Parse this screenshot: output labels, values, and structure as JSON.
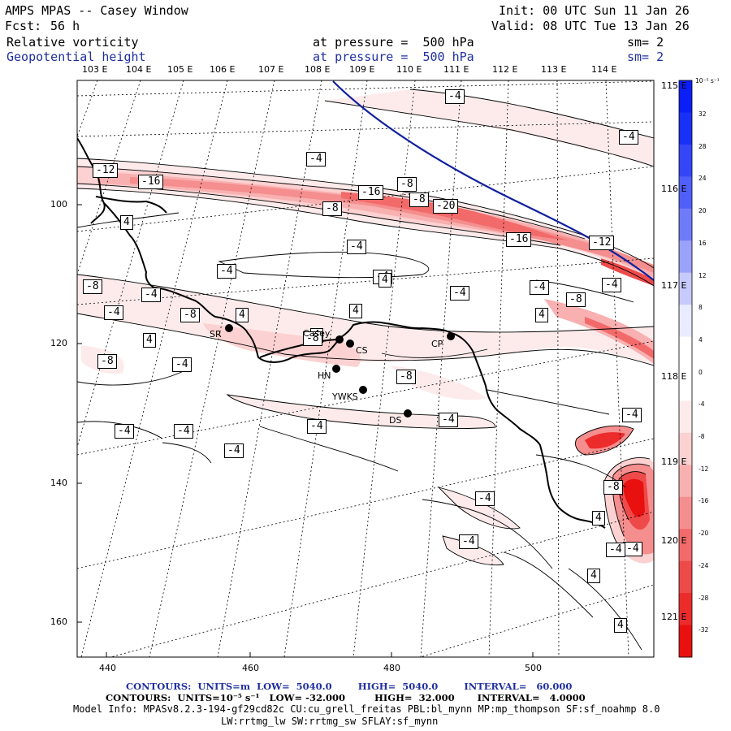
{
  "header": {
    "title": "AMPS MPAS -- Casey Window",
    "forecast_label": "Fcst:",
    "forecast_value": "56 h",
    "init": "Init: 00 UTC Sun 11 Jan 26",
    "valid": "Valid: 08 UTC Tue 13 Jan 26"
  },
  "fields": [
    {
      "name": "Relative vorticity",
      "level": "at pressure =  500 hPa",
      "smooth": "sm= 2"
    },
    {
      "name": "Geopotential height",
      "level": "at pressure =  500 hPa",
      "smooth": "sm= 2"
    }
  ],
  "longitude_labels": [
    "103 E",
    "104 E",
    "105 E",
    "106 E",
    "107 E",
    "108 E",
    "109 E",
    "110 E",
    "111 E",
    "112 E",
    "113 E",
    "114 E"
  ],
  "latitude_labels": [
    "115 E",
    "116 E",
    "117 E",
    "118 E",
    "119 E",
    "120 E",
    "121 E"
  ],
  "x_axis": [
    "440",
    "460",
    "480",
    "500"
  ],
  "y_axis": [
    "100",
    "120",
    "140",
    "160"
  ],
  "colorbar": {
    "unit": "10⁻⁵ s⁻¹",
    "labels": [
      "32",
      "28",
      "24",
      "20",
      "16",
      "12",
      "8",
      "4",
      "0",
      "-4",
      "-8",
      "-12",
      "-16",
      "-20",
      "-24",
      "-28",
      "-32"
    ],
    "colors": {
      "pos": [
        "#0a1ef5",
        "#1930f7",
        "#3446f8",
        "#4f5ff9",
        "#6f7cfa",
        "#9aa2fb",
        "#c6cafd",
        "#e9ebfe"
      ],
      "neg": [
        "#fdebeb",
        "#fbd1d1",
        "#f8b0b0",
        "#f58e8e",
        "#f26a6a",
        "#ef4a4a",
        "#ec2b2b",
        "#e91010"
      ]
    }
  },
  "stations": [
    "SR",
    "Casey",
    "CS",
    "CP",
    "HN",
    "YWKS",
    "DS"
  ],
  "contour_labels": [
    "-4",
    "-4",
    "-4",
    "-4",
    "-4",
    "-4",
    "-4",
    "-4",
    "-4",
    "-4",
    "-4",
    "-4",
    "-4",
    "-4",
    "-4",
    "-4",
    "-4",
    "-4",
    "-4",
    "-4",
    "-4",
    "-4",
    "4",
    "4",
    "4",
    "4",
    "4",
    "4",
    "4",
    "4",
    "4",
    "4",
    "-8",
    "-8",
    "-8",
    "-8",
    "-8",
    "-8",
    "-8",
    "-8",
    "-8",
    "-8",
    "-12",
    "-12",
    "-16",
    "-16",
    "-16",
    "-20"
  ],
  "footer": {
    "contours_height": "CONTOURS:  UNITS=m  LOW=  5040.0        HIGH=  5040.0        INTERVAL=   60.000",
    "contours_vort": "CONTOURS:  UNITS=10⁻⁵ s⁻¹   LOW= -32.000         HIGH=  32.000       INTERVAL=   4.0000",
    "model_info": "Model Info: MPASv8.2.3-194-gf29cd82c CU:cu_grell_freitas PBL:bl_mynn MP:mp_thompson SF:sf_noahmp 8.0",
    "model_info2": "LW:rrtmg_lw SW:rrtmg_sw SFLAY:sf_mynn"
  }
}
